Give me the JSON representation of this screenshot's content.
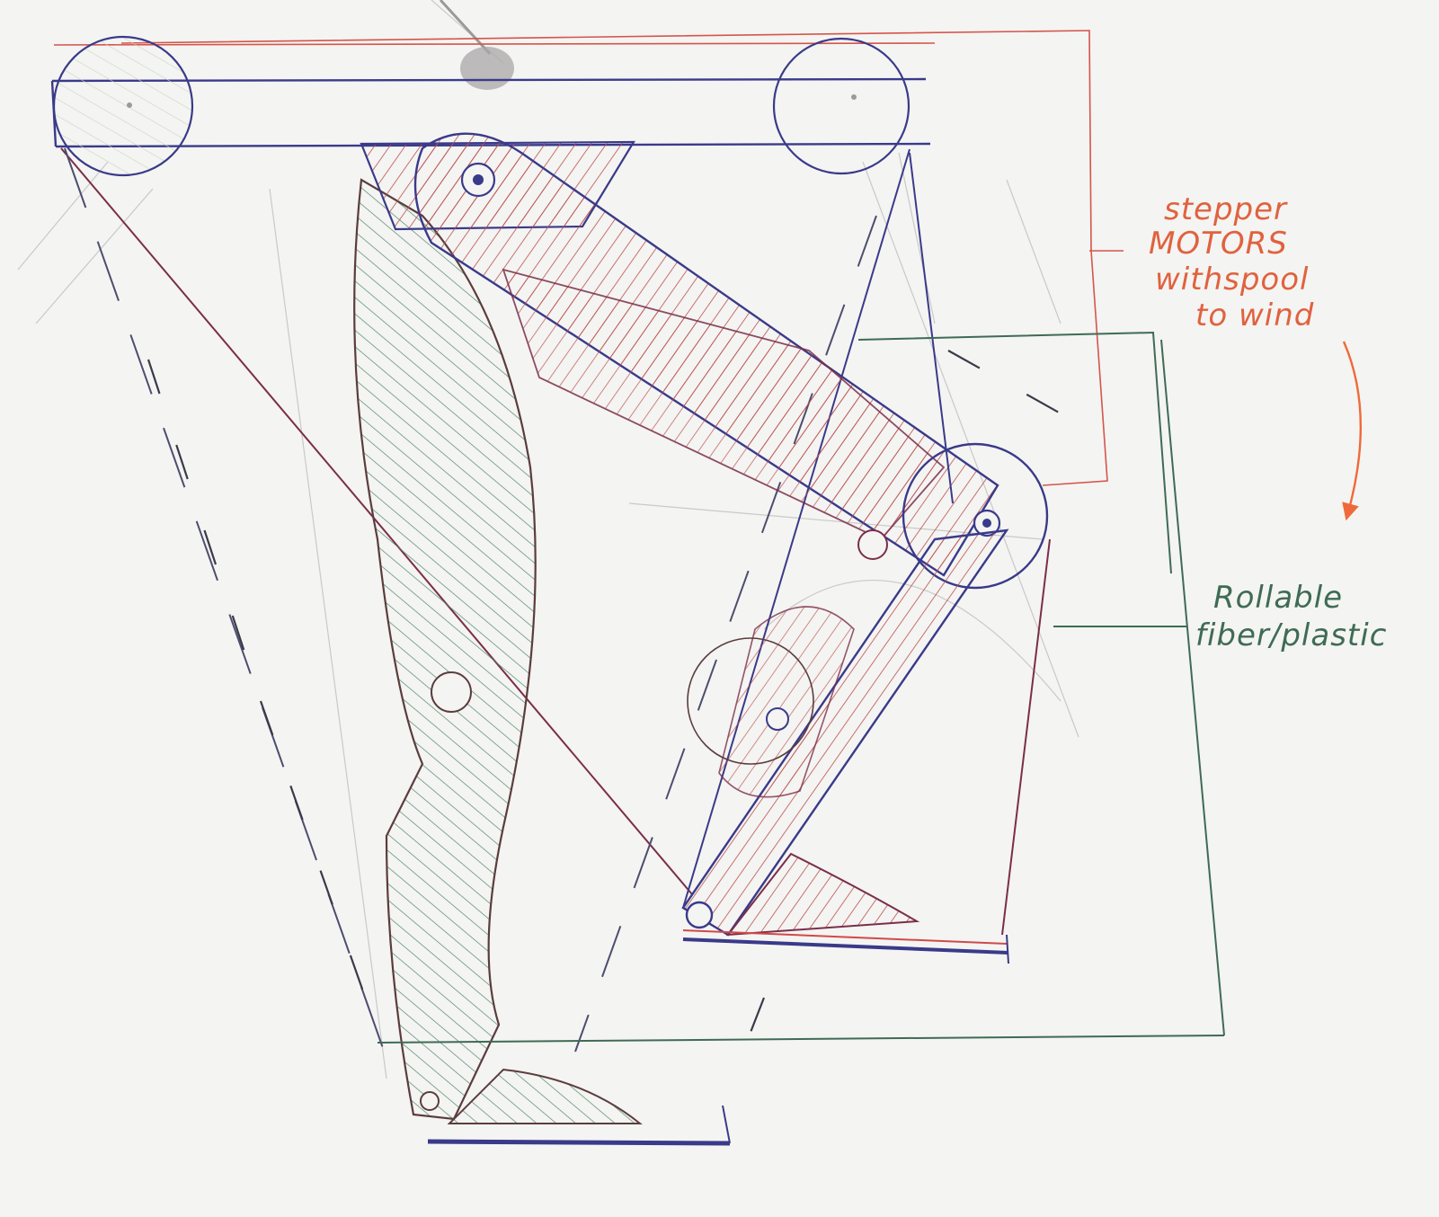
{
  "annotations": {
    "stepper": {
      "lines": [
        "stepper",
        "MOTORS",
        "withspool",
        "to wind"
      ],
      "color": "#e0623f"
    },
    "fiber": {
      "lines": [
        "Rollable",
        "fiber/plastic"
      ],
      "color": "#3f6b55"
    }
  },
  "palette": {
    "paper": "#f4f4f2",
    "blue_ink": "#3a3a8a",
    "red_ink": "#c8383a",
    "green_ink": "#3f6b55",
    "hatch_red": "#b9504f",
    "hatch_green": "#4f8a6a",
    "pencil": "#b5b5b5"
  }
}
